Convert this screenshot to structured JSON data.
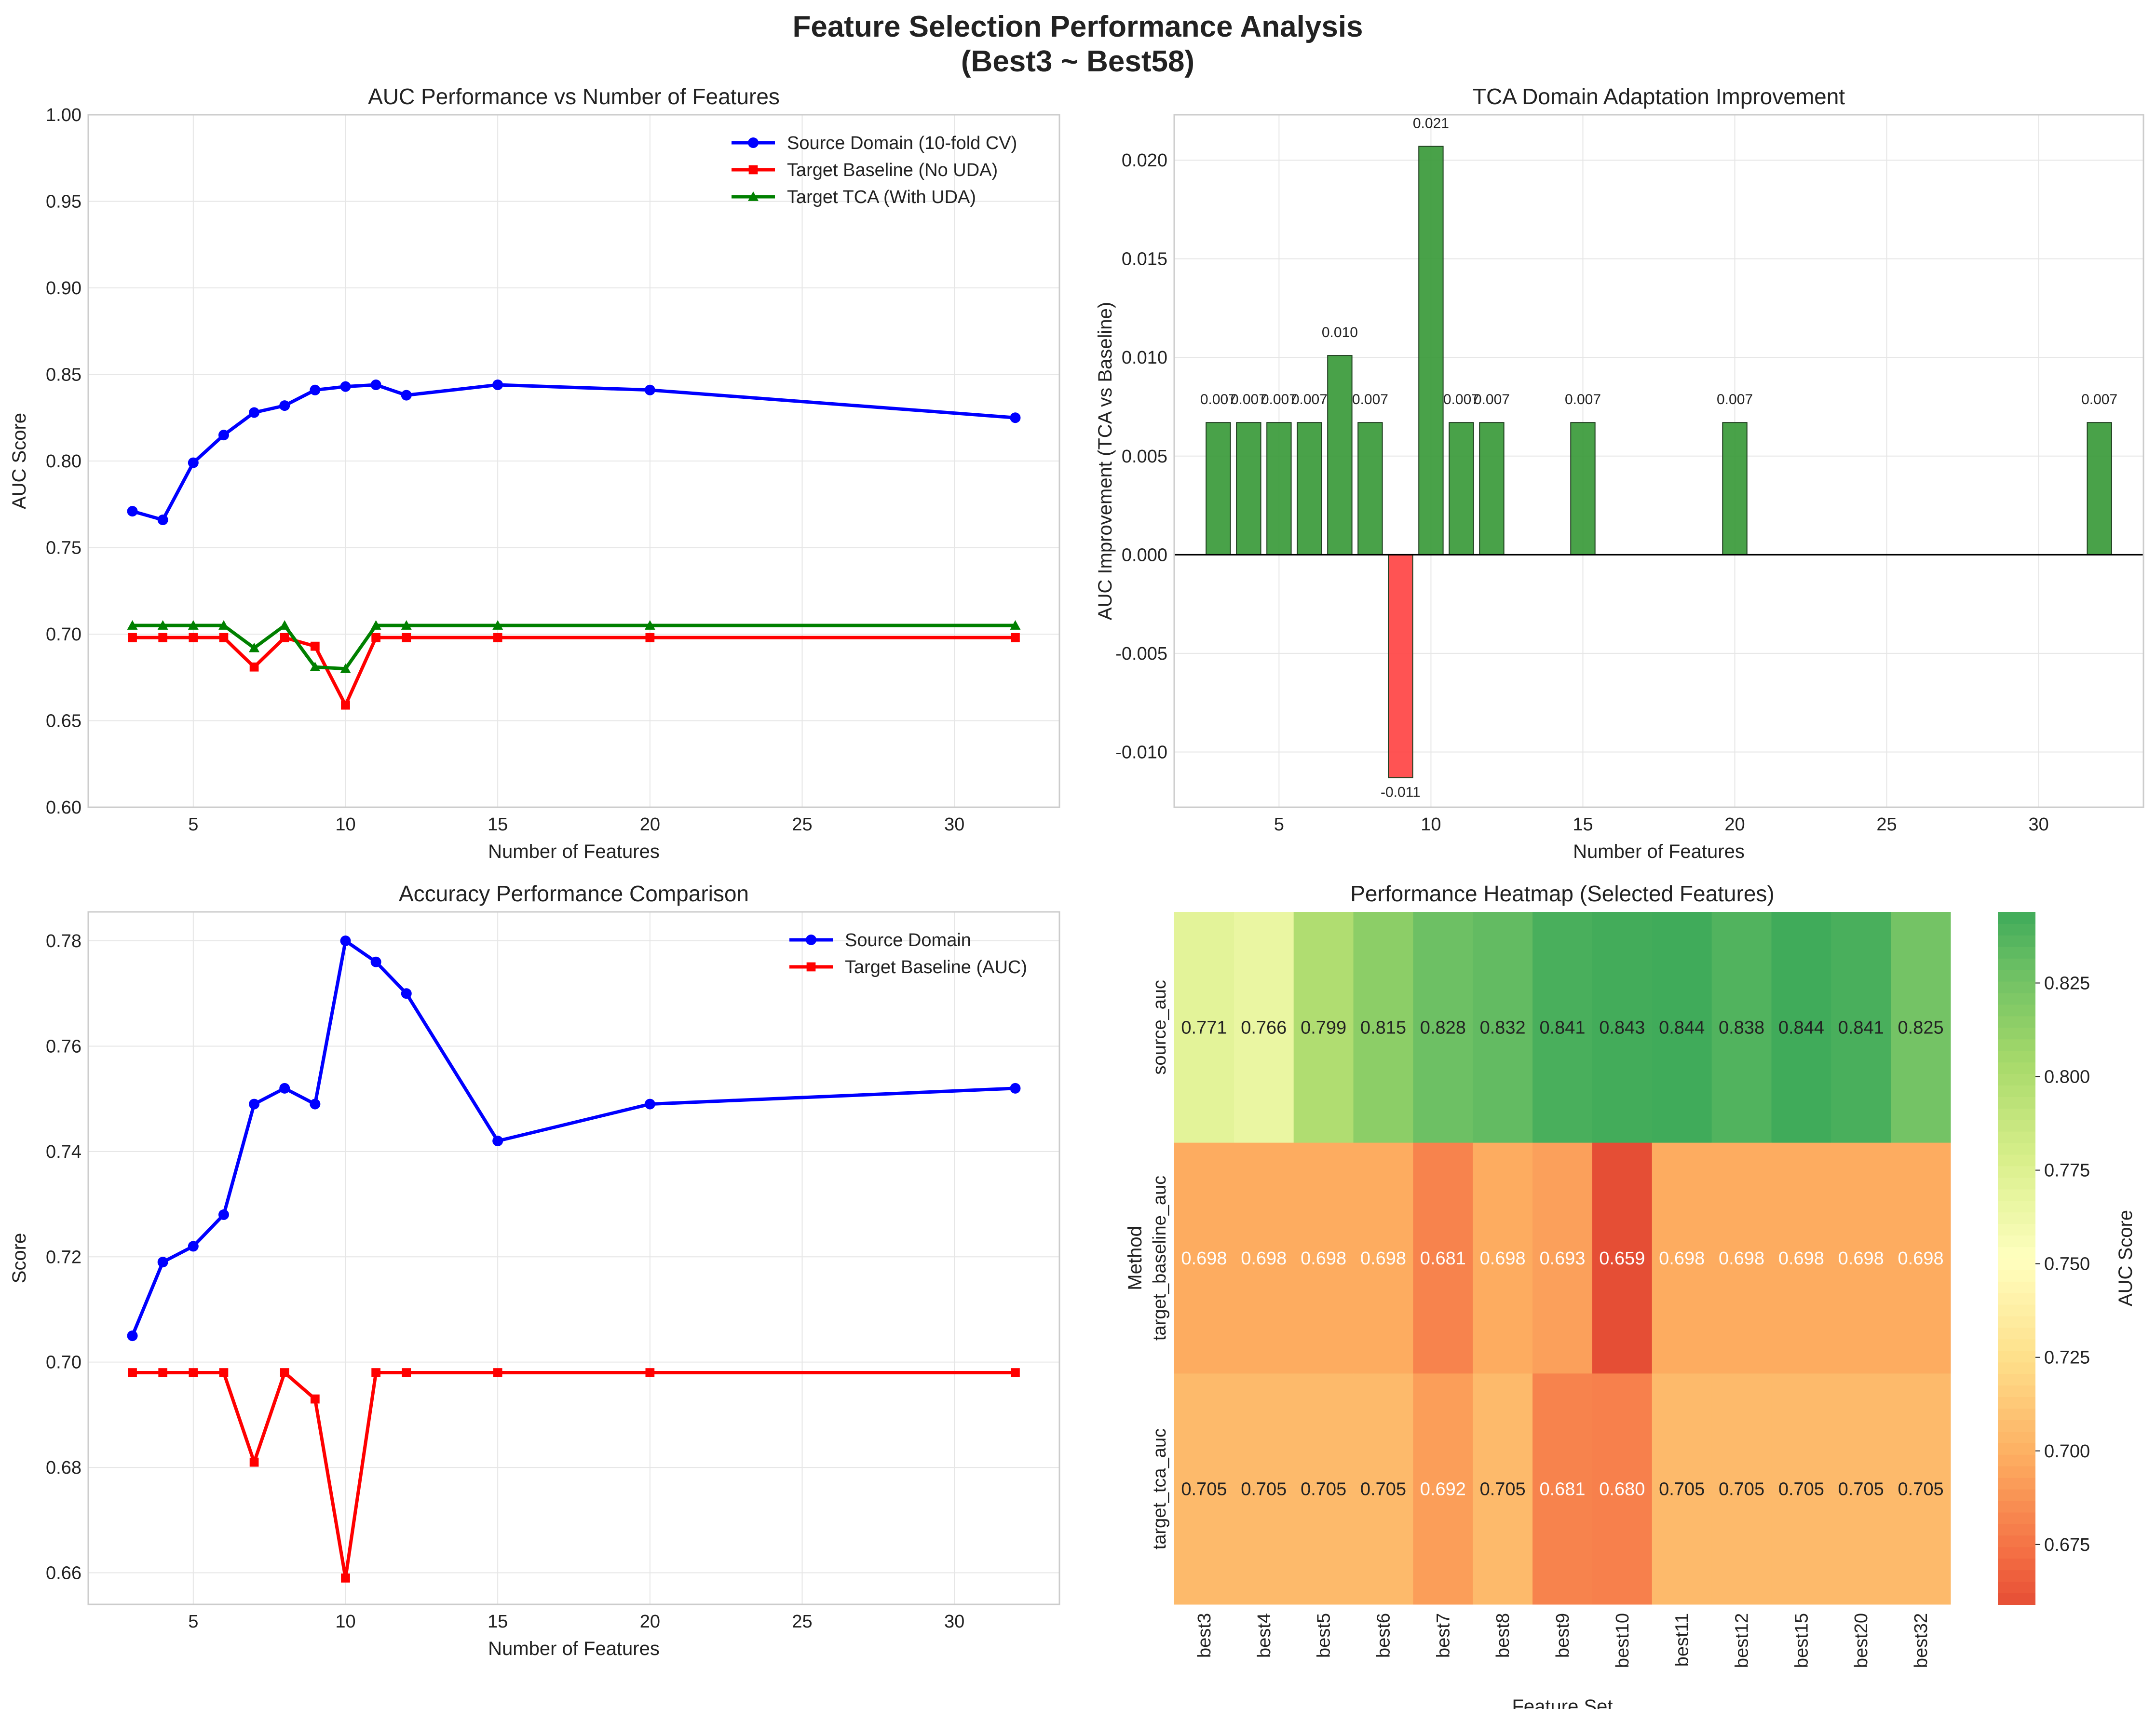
{
  "figure": {
    "title_line1": "Feature Selection Performance Analysis",
    "title_line2": "(Best3 ~ Best58)"
  },
  "chart_data": [
    {
      "id": "auc_vs_features",
      "type": "line",
      "title": "AUC Performance vs Number of Features",
      "xlabel": "Number of Features",
      "ylabel": "AUC Score",
      "xlim": [
        1.55,
        33.45
      ],
      "ylim": [
        0.6,
        1.0
      ],
      "xticks": [
        5,
        10,
        15,
        20,
        25,
        30
      ],
      "yticks": [
        0.6,
        0.65,
        0.7,
        0.75,
        0.8,
        0.85,
        0.9,
        0.95,
        1.0
      ],
      "ytick_decimals": 2,
      "grid": true,
      "legend": "top-right",
      "x": [
        3,
        4,
        5,
        6,
        7,
        8,
        9,
        10,
        11,
        12,
        15,
        20,
        32
      ],
      "series": [
        {
          "name": "Source Domain (10-fold CV)",
          "color": "#0000ff",
          "marker": "circle",
          "values": [
            0.771,
            0.766,
            0.799,
            0.815,
            0.828,
            0.832,
            0.841,
            0.843,
            0.844,
            0.838,
            0.844,
            0.841,
            0.825
          ]
        },
        {
          "name": "Target Baseline (No UDA)",
          "color": "#ff0000",
          "marker": "square",
          "values": [
            0.698,
            0.698,
            0.698,
            0.698,
            0.681,
            0.698,
            0.693,
            0.659,
            0.698,
            0.698,
            0.698,
            0.698,
            0.698
          ]
        },
        {
          "name": "Target TCA (With UDA)",
          "color": "#008000",
          "marker": "triangle",
          "values": [
            0.705,
            0.705,
            0.705,
            0.705,
            0.692,
            0.705,
            0.681,
            0.68,
            0.705,
            0.705,
            0.705,
            0.705,
            0.705
          ]
        }
      ]
    },
    {
      "id": "tca_improvement",
      "type": "bar",
      "title": "TCA Domain Adaptation Improvement",
      "xlabel": "Number of Features",
      "ylabel": "AUC Improvement (TCA vs Baseline)",
      "xlim": [
        1.55,
        33.45
      ],
      "ylim": [
        -0.0128,
        0.0223
      ],
      "xticks": [
        5,
        10,
        15,
        20,
        25,
        30
      ],
      "yticks": [
        -0.01,
        -0.005,
        0.0,
        0.005,
        0.01,
        0.015,
        0.02
      ],
      "ytick_decimals": 3,
      "grid": true,
      "positive_color": "#3a9a3a",
      "negative_color": "#ff4444",
      "x": [
        3,
        4,
        5,
        6,
        7,
        8,
        9,
        10,
        11,
        12,
        15,
        20,
        32
      ],
      "values": [
        0.0067,
        0.0067,
        0.0067,
        0.0067,
        0.0101,
        0.0067,
        -0.0113,
        0.0207,
        0.0067,
        0.0067,
        0.0067,
        0.0067,
        0.0067
      ],
      "labels": [
        "0.007",
        "0.007",
        "0.007",
        "0.007",
        "0.010",
        "0.007",
        "-0.011",
        "0.021",
        "0.007",
        "0.007",
        "0.007",
        "0.007",
        "0.007"
      ]
    },
    {
      "id": "accuracy_comparison",
      "type": "line",
      "title": "Accuracy Performance Comparison",
      "xlabel": "Number of Features",
      "ylabel": "Score",
      "xlim": [
        1.55,
        33.45
      ],
      "ylim": [
        0.654,
        0.7855
      ],
      "xticks": [
        5,
        10,
        15,
        20,
        25,
        30
      ],
      "yticks": [
        0.66,
        0.68,
        0.7,
        0.72,
        0.74,
        0.76,
        0.78
      ],
      "ytick_decimals": 2,
      "grid": true,
      "legend": "top-right",
      "x": [
        3,
        4,
        5,
        6,
        7,
        8,
        9,
        10,
        11,
        12,
        15,
        20,
        32
      ],
      "series": [
        {
          "name": "Source Domain",
          "color": "#0000ff",
          "marker": "circle",
          "values": [
            0.705,
            0.719,
            0.722,
            0.728,
            0.749,
            0.752,
            0.749,
            0.78,
            0.776,
            0.77,
            0.742,
            0.749,
            0.752
          ]
        },
        {
          "name": "Target Baseline (AUC)",
          "color": "#ff0000",
          "marker": "square",
          "values": [
            0.698,
            0.698,
            0.698,
            0.698,
            0.681,
            0.698,
            0.693,
            0.659,
            0.698,
            0.698,
            0.698,
            0.698,
            0.698
          ]
        }
      ]
    },
    {
      "id": "performance_heatmap",
      "type": "heatmap",
      "title": "Performance Heatmap (Selected Features)",
      "xlabel": "Feature Set",
      "ylabel": "Method",
      "colorbar_label": "AUC Score",
      "vmin": 0.659,
      "vmax": 0.844,
      "colorbar_ticks": [
        0.675,
        0.7,
        0.725,
        0.75,
        0.775,
        0.8,
        0.825
      ],
      "columns": [
        "best3",
        "best4",
        "best5",
        "best6",
        "best7",
        "best8",
        "best9",
        "best10",
        "best11",
        "best12",
        "best15",
        "best20",
        "best32"
      ],
      "rows": [
        "source_auc",
        "target_baseline_auc",
        "target_tca_auc"
      ],
      "values": [
        [
          0.771,
          0.766,
          0.799,
          0.815,
          0.828,
          0.832,
          0.841,
          0.843,
          0.844,
          0.838,
          0.844,
          0.841,
          0.825
        ],
        [
          0.698,
          0.698,
          0.698,
          0.698,
          0.681,
          0.698,
          0.693,
          0.659,
          0.698,
          0.698,
          0.698,
          0.698,
          0.698
        ],
        [
          0.705,
          0.705,
          0.705,
          0.705,
          0.692,
          0.705,
          0.681,
          0.68,
          0.705,
          0.705,
          0.705,
          0.705,
          0.705
        ]
      ]
    }
  ]
}
